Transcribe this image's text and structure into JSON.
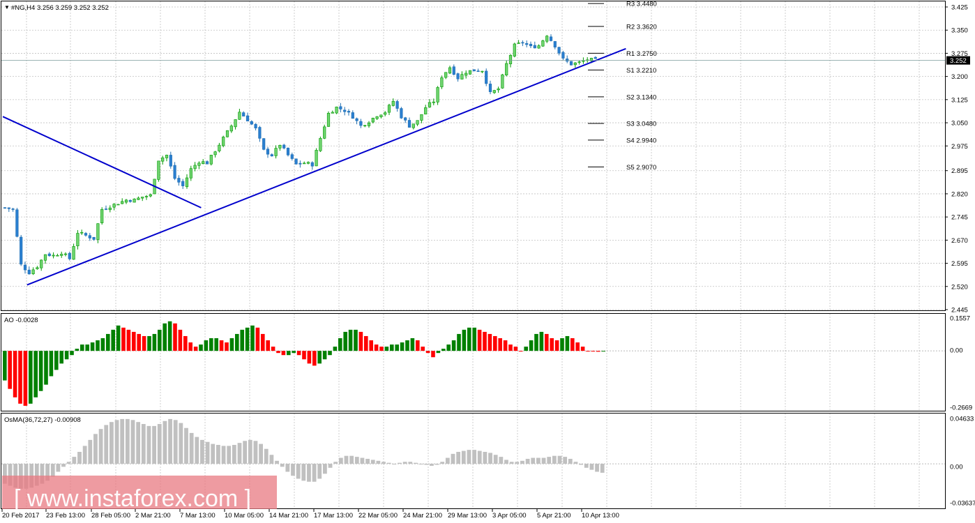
{
  "window": {
    "symbol_info": "#NG,H4  3.256 3.259 3.252 3.252",
    "current_price_label": "3.252"
  },
  "chart_data": [
    {
      "type": "candlestick",
      "panel": "main",
      "symbol": "#NG",
      "timeframe": "H4",
      "ohlc_header": {
        "open": 3.256,
        "high": 3.259,
        "low": 3.252,
        "close": 3.252
      },
      "ylim": [
        2.445,
        3.425
      ],
      "y_ticks": [
        "3.425",
        "3.350",
        "3.275",
        "3.200",
        "3.125",
        "3.050",
        "2.975",
        "2.895",
        "2.820",
        "2.745",
        "2.670",
        "2.595",
        "2.520",
        "2.445"
      ],
      "x_ticks": [
        "20 Feb 2017",
        "23 Feb 13:00",
        "28 Feb 05:00",
        "2 Mar 21:00",
        "7 Mar 13:00",
        "10 Mar 05:00",
        "14 Mar 21:00",
        "17 Mar 13:00",
        "22 Mar 05:00",
        "24 Mar 21:00",
        "29 Mar 13:00",
        "3 Apr 05:00",
        "5 Apr 21:00",
        "10 Apr 13:00"
      ],
      "pivot_levels": [
        {
          "name": "R3",
          "value": 3.448,
          "label": "R3 3.4480"
        },
        {
          "name": "R2",
          "value": 3.362,
          "label": "R2 3.3620"
        },
        {
          "name": "R1",
          "value": 3.275,
          "label": "R1 3.2750"
        },
        {
          "name": "S1",
          "value": 3.221,
          "label": "S1 3.2210"
        },
        {
          "name": "S2",
          "value": 3.134,
          "label": "S2 3.1340"
        },
        {
          "name": "S3",
          "value": 3.048,
          "label": "S3 3.0480"
        },
        {
          "name": "S4",
          "value": 2.994,
          "label": "S4 2.9940"
        },
        {
          "name": "S5",
          "value": 2.907,
          "label": "S5 2.9070"
        }
      ],
      "trendlines": [
        {
          "name": "descending-resistance",
          "from": {
            "bar": 0,
            "price": 3.07
          },
          "to": {
            "bar": 48,
            "price": 2.775
          }
        },
        {
          "name": "ascending-support",
          "from": {
            "bar": 6,
            "price": 2.525
          },
          "to": {
            "bar": 153,
            "price": 3.29
          }
        }
      ],
      "close_path": [
        [
          0,
          2.775
        ],
        [
          2,
          2.77
        ],
        [
          4,
          2.59
        ],
        [
          6,
          2.565
        ],
        [
          8,
          2.585
        ],
        [
          10,
          2.625
        ],
        [
          12,
          2.62
        ],
        [
          14,
          2.63
        ],
        [
          16,
          2.61
        ],
        [
          18,
          2.695
        ],
        [
          20,
          2.685
        ],
        [
          22,
          2.675
        ],
        [
          24,
          2.77
        ],
        [
          26,
          2.78
        ],
        [
          28,
          2.79
        ],
        [
          30,
          2.8
        ],
        [
          32,
          2.8
        ],
        [
          34,
          2.81
        ],
        [
          36,
          2.815
        ],
        [
          38,
          2.93
        ],
        [
          40,
          2.945
        ],
        [
          42,
          2.87
        ],
        [
          44,
          2.845
        ],
        [
          46,
          2.9
        ],
        [
          48,
          2.925
        ],
        [
          50,
          2.92
        ],
        [
          52,
          2.96
        ],
        [
          54,
          3.0
        ],
        [
          56,
          3.04
        ],
        [
          58,
          3.085
        ],
        [
          60,
          3.06
        ],
        [
          62,
          3.03
        ],
        [
          64,
          2.96
        ],
        [
          66,
          2.945
        ],
        [
          68,
          2.98
        ],
        [
          70,
          2.945
        ],
        [
          72,
          2.915
        ],
        [
          74,
          2.92
        ],
        [
          76,
          2.915
        ],
        [
          78,
          3.0
        ],
        [
          80,
          3.08
        ],
        [
          82,
          3.1
        ],
        [
          84,
          3.09
        ],
        [
          86,
          3.07
        ],
        [
          88,
          3.04
        ],
        [
          90,
          3.055
        ],
        [
          92,
          3.075
        ],
        [
          94,
          3.085
        ],
        [
          96,
          3.12
        ],
        [
          98,
          3.07
        ],
        [
          100,
          3.04
        ],
        [
          102,
          3.055
        ],
        [
          104,
          3.1
        ],
        [
          106,
          3.12
        ],
        [
          108,
          3.2
        ],
        [
          110,
          3.23
        ],
        [
          112,
          3.195
        ],
        [
          114,
          3.215
        ],
        [
          116,
          3.22
        ],
        [
          118,
          3.22
        ],
        [
          120,
          3.145
        ],
        [
          122,
          3.16
        ],
        [
          124,
          3.24
        ],
        [
          126,
          3.3
        ],
        [
          128,
          3.31
        ],
        [
          130,
          3.295
        ],
        [
          132,
          3.3
        ],
        [
          134,
          3.335
        ],
        [
          136,
          3.3
        ],
        [
          138,
          3.255
        ],
        [
          140,
          3.24
        ],
        [
          142,
          3.245
        ],
        [
          144,
          3.255
        ],
        [
          146,
          3.252
        ]
      ]
    },
    {
      "type": "histogram",
      "panel": "AO",
      "label": "AO -0.0028",
      "ylim": [
        -0.2669,
        0.1557
      ],
      "y_ticks": [
        "0.1557",
        "0.00",
        "-0.2669"
      ],
      "colors": {
        "up": "#008000",
        "down": "#ff0000"
      },
      "values": [
        -0.14,
        -0.18,
        -0.22,
        -0.25,
        -0.26,
        -0.25,
        -0.22,
        -0.19,
        -0.16,
        -0.12,
        -0.09,
        -0.06,
        -0.04,
        -0.02,
        0.01,
        0.03,
        0.03,
        0.04,
        0.05,
        0.06,
        0.08,
        0.1,
        0.12,
        0.11,
        0.1,
        0.09,
        0.08,
        0.07,
        0.07,
        0.08,
        0.1,
        0.13,
        0.14,
        0.13,
        0.1,
        0.07,
        0.04,
        0.02,
        0.03,
        0.05,
        0.06,
        0.06,
        0.05,
        0.04,
        0.06,
        0.08,
        0.1,
        0.11,
        0.12,
        0.11,
        0.08,
        0.05,
        0.02,
        -0.01,
        -0.02,
        -0.02,
        -0.01,
        -0.02,
        -0.04,
        -0.06,
        -0.07,
        -0.06,
        -0.04,
        -0.02,
        0.02,
        0.06,
        0.09,
        0.1,
        0.1,
        0.09,
        0.07,
        0.05,
        0.03,
        0.02,
        0.02,
        0.03,
        0.03,
        0.04,
        0.05,
        0.06,
        0.05,
        0.02,
        -0.01,
        -0.03,
        -0.01,
        0.01,
        0.03,
        0.05,
        0.08,
        0.1,
        0.11,
        0.11,
        0.1,
        0.09,
        0.08,
        0.07,
        0.06,
        0.05,
        0.03,
        0.02,
        0.0,
        0.02,
        0.05,
        0.08,
        0.09,
        0.08,
        0.06,
        0.05,
        0.06,
        0.07,
        0.06,
        0.04,
        0.02,
        0.0,
        -0.003,
        -0.004,
        -0.003
      ]
    },
    {
      "type": "histogram",
      "panel": "OsMA",
      "label": "OsMA(36,72,27) -0.00908",
      "ylim": [
        -0.03637,
        0.04633
      ],
      "y_ticks": [
        "0.04633",
        "0.00",
        "-0.03637"
      ],
      "colors": {
        "bars": "#c0c0c0"
      },
      "values": [
        -0.02,
        -0.022,
        -0.024,
        -0.025,
        -0.025,
        -0.024,
        -0.022,
        -0.02,
        -0.017,
        -0.013,
        -0.008,
        -0.003,
        0.002,
        0.007,
        0.012,
        0.018,
        0.024,
        0.03,
        0.035,
        0.039,
        0.042,
        0.044,
        0.045,
        0.045,
        0.044,
        0.042,
        0.04,
        0.038,
        0.038,
        0.04,
        0.043,
        0.045,
        0.044,
        0.041,
        0.036,
        0.031,
        0.027,
        0.024,
        0.022,
        0.02,
        0.019,
        0.018,
        0.018,
        0.019,
        0.021,
        0.023,
        0.024,
        0.023,
        0.02,
        0.015,
        0.009,
        0.003,
        -0.003,
        -0.008,
        -0.012,
        -0.015,
        -0.017,
        -0.018,
        -0.018,
        -0.015,
        -0.01,
        -0.004,
        0.002,
        0.006,
        0.008,
        0.008,
        0.007,
        0.006,
        0.005,
        0.004,
        0.003,
        0.002,
        0.001,
        0.0,
        0.001,
        0.002,
        0.002,
        0.001,
        0.0,
        -0.001,
        -0.002,
        -0.001,
        0.002,
        0.006,
        0.01,
        0.012,
        0.013,
        0.014,
        0.014,
        0.013,
        0.012,
        0.011,
        0.009,
        0.007,
        0.004,
        0.002,
        0.002,
        0.003,
        0.005,
        0.006,
        0.006,
        0.006,
        0.007,
        0.008,
        0.008,
        0.007,
        0.005,
        0.002,
        -0.001,
        -0.004,
        -0.006,
        -0.008,
        -0.009
      ]
    }
  ],
  "watermark": {
    "text": "[ www.instaforex.com ]"
  }
}
